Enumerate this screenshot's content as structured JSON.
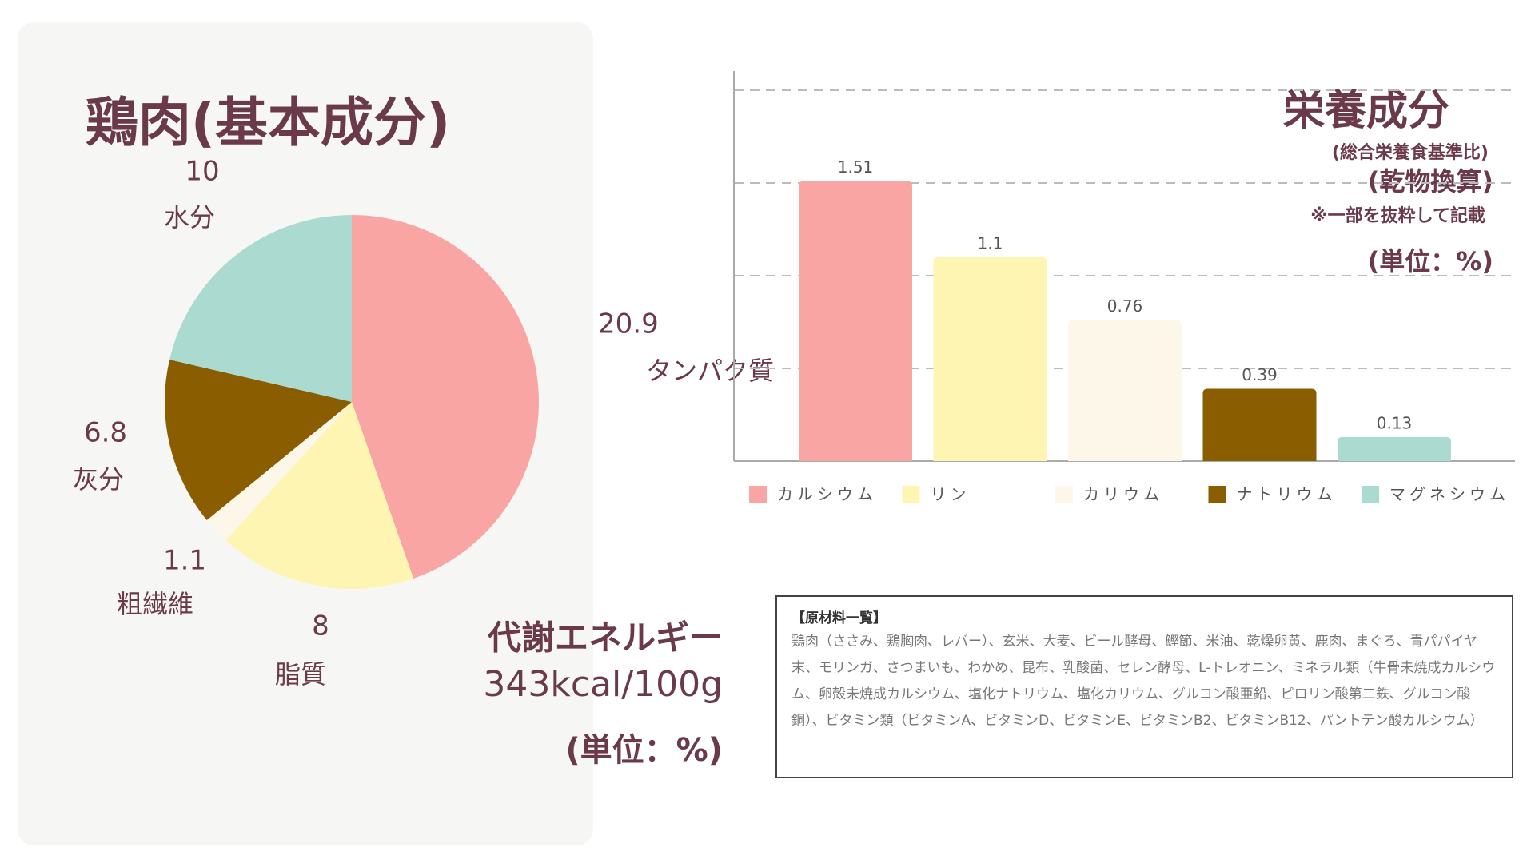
{
  "chart_data": [
    {
      "type": "pie",
      "title": "鶏肉(基本成分)",
      "categories": [
        "タンパク質",
        "脂質",
        "粗繊維",
        "灰分",
        "水分"
      ],
      "values": [
        20.9,
        8,
        1.1,
        6.8,
        10
      ],
      "colors": [
        "#f9a5a3",
        "#fff5b3",
        "#fdf7e9",
        "#8a5d00",
        "#abdbd0"
      ],
      "annotations": [
        "代謝エネルギー",
        "343kcal/100g",
        "(単位：%)"
      ]
    },
    {
      "type": "bar",
      "title": "栄養成分",
      "subtitles": [
        "(総合栄養食基準比)",
        "(乾物換算)",
        "※一部を抜粋して記載",
        "(単位：%)"
      ],
      "categories": [
        "カルシウム",
        "リン",
        "カリウム",
        "ナトリウム",
        "マグネシウム"
      ],
      "values": [
        1.51,
        1.1,
        0.76,
        0.39,
        0.13
      ],
      "colors": [
        "#f9a5a3",
        "#fff5b3",
        "#fdf7e9",
        "#8a5d00",
        "#abdbd0"
      ],
      "ylim": [
        0,
        2
      ],
      "yticks": [
        0.5,
        1,
        1.5,
        2
      ],
      "grid": true
    }
  ],
  "ingredients": {
    "title": "【原材料一覧】",
    "text": "鶏肉（ささみ、鶏胸肉、レバー）、玄米、大麦、ビール酵母、鰹節、米油、乾燥卵黄、鹿肉、まぐろ、青パパイヤ末、モリンガ、さつまいも、わかめ、昆布、乳酸菌、セレン酵母、L-トレオニン、ミネラル類（牛骨未焼成カルシウム、卵殻未焼成カルシウム、塩化ナトリウム、塩化カリウム、グルコン酸亜鉛、ピロリン酸第二鉄、グルコン酸銅）、ビタミン類（ビタミンA、ビタミンD、ビタミンE、ビタミンB2、ビタミンB12、パントテン酸カルシウム）"
  }
}
